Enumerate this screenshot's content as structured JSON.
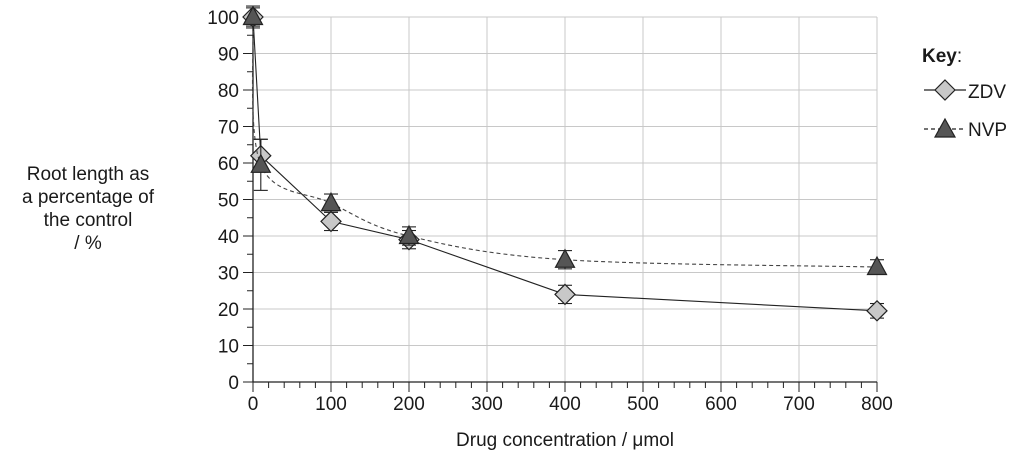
{
  "chart_data": {
    "type": "line",
    "xlabel": "Drug concentration / μmol",
    "ylabel": "Root length as\na percentage of\nthe control\n/ %",
    "xlim": [
      0,
      800
    ],
    "ylim": [
      0,
      100
    ],
    "x_ticks": [
      0,
      100,
      200,
      300,
      400,
      500,
      600,
      700,
      800
    ],
    "y_ticks": [
      0,
      10,
      20,
      30,
      40,
      50,
      60,
      70,
      80,
      90,
      100
    ],
    "grid": true,
    "legend_title": "Key",
    "legend_position": "right",
    "series": [
      {
        "name": "ZDV",
        "marker": "diamond",
        "line_style": "solid",
        "color": "#c8c8c8",
        "x": [
          0,
          10,
          100,
          200,
          400,
          800
        ],
        "y": [
          100,
          62,
          44,
          39,
          24,
          19.5
        ],
        "error": [
          2.5,
          4.5,
          2.5,
          2.5,
          2.5,
          2
        ]
      },
      {
        "name": "NVP",
        "marker": "triangle",
        "line_style": "dashed",
        "color": "#555555",
        "x": [
          0,
          10,
          100,
          200,
          400,
          800
        ],
        "y": [
          100,
          59.5,
          49,
          40,
          33.5,
          31.5
        ],
        "error": [
          3,
          7,
          2.5,
          2.5,
          2.5,
          2
        ]
      }
    ]
  }
}
